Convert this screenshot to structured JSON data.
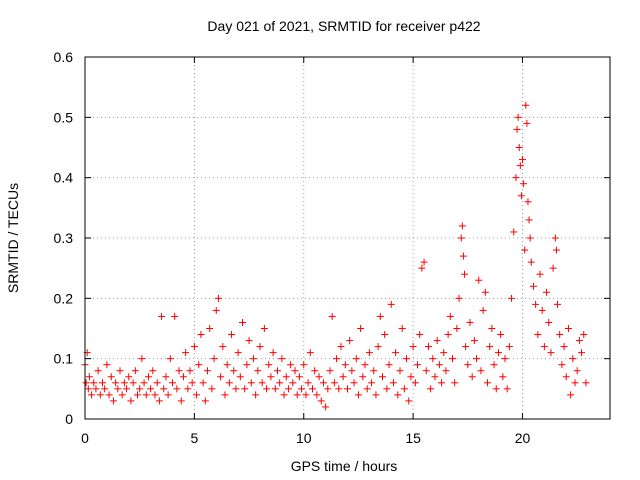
{
  "chart_data": {
    "type": "scatter",
    "title": "Day 021 of 2021, SRMTID for receiver p422",
    "xlabel": "GPS time / hours",
    "ylabel": "SRMTID / TECUs",
    "xlim": [
      0,
      24
    ],
    "ylim": [
      0,
      0.6
    ],
    "xticks": [
      0,
      5,
      10,
      15,
      20
    ],
    "xtick_labels": [
      "0",
      "5",
      "10",
      "15",
      "20"
    ],
    "yticks": [
      0,
      0.1,
      0.2,
      0.3,
      0.4,
      0.5,
      0.6
    ],
    "ytick_labels": [
      "0",
      "0.1",
      "0.2",
      "0.3",
      "0.4",
      "0.5",
      "0.6"
    ],
    "grid": true,
    "marker": "+",
    "series_color": "#ff0000",
    "series": [
      {
        "name": "SRMTID",
        "points": [
          [
            0.0,
            0.09
          ],
          [
            0.05,
            0.06
          ],
          [
            0.1,
            0.11
          ],
          [
            0.15,
            0.05
          ],
          [
            0.2,
            0.07
          ],
          [
            0.3,
            0.04
          ],
          [
            0.4,
            0.06
          ],
          [
            0.5,
            0.05
          ],
          [
            0.6,
            0.08
          ],
          [
            0.7,
            0.04
          ],
          [
            0.8,
            0.06
          ],
          [
            0.9,
            0.05
          ],
          [
            1.0,
            0.09
          ],
          [
            1.1,
            0.04
          ],
          [
            1.2,
            0.07
          ],
          [
            1.3,
            0.03
          ],
          [
            1.4,
            0.06
          ],
          [
            1.5,
            0.05
          ],
          [
            1.6,
            0.08
          ],
          [
            1.7,
            0.04
          ],
          [
            1.8,
            0.06
          ],
          [
            1.9,
            0.05
          ],
          [
            2.0,
            0.07
          ],
          [
            2.1,
            0.03
          ],
          [
            2.2,
            0.06
          ],
          [
            2.3,
            0.08
          ],
          [
            2.4,
            0.04
          ],
          [
            2.5,
            0.05
          ],
          [
            2.6,
            0.1
          ],
          [
            2.7,
            0.06
          ],
          [
            2.8,
            0.04
          ],
          [
            2.9,
            0.07
          ],
          [
            3.0,
            0.05
          ],
          [
            3.1,
            0.08
          ],
          [
            3.2,
            0.04
          ],
          [
            3.3,
            0.06
          ],
          [
            3.4,
            0.03
          ],
          [
            3.5,
            0.17
          ],
          [
            3.6,
            0.05
          ],
          [
            3.7,
            0.07
          ],
          [
            3.8,
            0.04
          ],
          [
            3.9,
            0.1
          ],
          [
            4.0,
            0.06
          ],
          [
            4.1,
            0.17
          ],
          [
            4.2,
            0.05
          ],
          [
            4.3,
            0.08
          ],
          [
            4.4,
            0.03
          ],
          [
            4.5,
            0.07
          ],
          [
            4.6,
            0.11
          ],
          [
            4.7,
            0.05
          ],
          [
            4.8,
            0.08
          ],
          [
            4.9,
            0.06
          ],
          [
            5.0,
            0.12
          ],
          [
            5.1,
            0.04
          ],
          [
            5.2,
            0.09
          ],
          [
            5.3,
            0.14
          ],
          [
            5.4,
            0.06
          ],
          [
            5.5,
            0.03
          ],
          [
            5.6,
            0.08
          ],
          [
            5.7,
            0.15
          ],
          [
            5.8,
            0.05
          ],
          [
            5.9,
            0.1
          ],
          [
            6.0,
            0.18
          ],
          [
            6.1,
            0.2
          ],
          [
            6.2,
            0.07
          ],
          [
            6.3,
            0.12
          ],
          [
            6.4,
            0.04
          ],
          [
            6.5,
            0.09
          ],
          [
            6.6,
            0.06
          ],
          [
            6.7,
            0.14
          ],
          [
            6.8,
            0.08
          ],
          [
            6.9,
            0.05
          ],
          [
            7.0,
            0.11
          ],
          [
            7.1,
            0.07
          ],
          [
            7.2,
            0.16
          ],
          [
            7.3,
            0.05
          ],
          [
            7.4,
            0.09
          ],
          [
            7.5,
            0.13
          ],
          [
            7.6,
            0.06
          ],
          [
            7.7,
            0.1
          ],
          [
            7.8,
            0.04
          ],
          [
            7.9,
            0.08
          ],
          [
            8.0,
            0.12
          ],
          [
            8.1,
            0.06
          ],
          [
            8.2,
            0.15
          ],
          [
            8.3,
            0.05
          ],
          [
            8.4,
            0.09
          ],
          [
            8.5,
            0.07
          ],
          [
            8.6,
            0.11
          ],
          [
            8.7,
            0.05
          ],
          [
            8.8,
            0.08
          ],
          [
            8.9,
            0.06
          ],
          [
            9.0,
            0.1
          ],
          [
            9.1,
            0.04
          ],
          [
            9.2,
            0.07
          ],
          [
            9.3,
            0.05
          ],
          [
            9.4,
            0.09
          ],
          [
            9.5,
            0.06
          ],
          [
            9.6,
            0.08
          ],
          [
            9.7,
            0.04
          ],
          [
            9.8,
            0.07
          ],
          [
            9.9,
            0.05
          ],
          [
            10.0,
            0.09
          ],
          [
            10.1,
            0.04
          ],
          [
            10.2,
            0.06
          ],
          [
            10.3,
            0.11
          ],
          [
            10.4,
            0.05
          ],
          [
            10.5,
            0.08
          ],
          [
            10.6,
            0.04
          ],
          [
            10.7,
            0.07
          ],
          [
            10.8,
            0.03
          ],
          [
            10.9,
            0.06
          ],
          [
            11.0,
            0.02
          ],
          [
            11.1,
            0.05
          ],
          [
            11.2,
            0.08
          ],
          [
            11.3,
            0.17
          ],
          [
            11.4,
            0.06
          ],
          [
            11.5,
            0.1
          ],
          [
            11.6,
            0.05
          ],
          [
            11.7,
            0.12
          ],
          [
            11.8,
            0.07
          ],
          [
            11.9,
            0.09
          ],
          [
            12.0,
            0.05
          ],
          [
            12.1,
            0.13
          ],
          [
            12.2,
            0.08
          ],
          [
            12.3,
            0.06
          ],
          [
            12.4,
            0.1
          ],
          [
            12.5,
            0.04
          ],
          [
            12.6,
            0.15
          ],
          [
            12.7,
            0.07
          ],
          [
            12.8,
            0.09
          ],
          [
            12.9,
            0.05
          ],
          [
            13.0,
            0.11
          ],
          [
            13.1,
            0.06
          ],
          [
            13.2,
            0.08
          ],
          [
            13.3,
            0.04
          ],
          [
            13.4,
            0.12
          ],
          [
            13.5,
            0.17
          ],
          [
            13.6,
            0.07
          ],
          [
            13.7,
            0.14
          ],
          [
            13.8,
            0.05
          ],
          [
            13.9,
            0.09
          ],
          [
            14.0,
            0.19
          ],
          [
            14.1,
            0.06
          ],
          [
            14.2,
            0.11
          ],
          [
            14.3,
            0.04
          ],
          [
            14.4,
            0.08
          ],
          [
            14.5,
            0.15
          ],
          [
            14.6,
            0.05
          ],
          [
            14.7,
            0.1
          ],
          [
            14.8,
            0.03
          ],
          [
            14.9,
            0.07
          ],
          [
            15.0,
            0.12
          ],
          [
            15.1,
            0.06
          ],
          [
            15.2,
            0.09
          ],
          [
            15.3,
            0.14
          ],
          [
            15.4,
            0.25
          ],
          [
            15.5,
            0.26
          ],
          [
            15.6,
            0.08
          ],
          [
            15.7,
            0.12
          ],
          [
            15.8,
            0.05
          ],
          [
            15.9,
            0.1
          ],
          [
            16.0,
            0.07
          ],
          [
            16.1,
            0.13
          ],
          [
            16.2,
            0.09
          ],
          [
            16.3,
            0.06
          ],
          [
            16.4,
            0.11
          ],
          [
            16.5,
            0.08
          ],
          [
            16.6,
            0.14
          ],
          [
            16.7,
            0.17
          ],
          [
            16.8,
            0.1
          ],
          [
            16.9,
            0.06
          ],
          [
            17.0,
            0.15
          ],
          [
            17.1,
            0.2
          ],
          [
            17.2,
            0.3
          ],
          [
            17.25,
            0.32
          ],
          [
            17.3,
            0.27
          ],
          [
            17.35,
            0.24
          ],
          [
            17.4,
            0.12
          ],
          [
            17.5,
            0.09
          ],
          [
            17.6,
            0.16
          ],
          [
            17.7,
            0.07
          ],
          [
            17.8,
            0.13
          ],
          [
            17.9,
            0.1
          ],
          [
            18.0,
            0.23
          ],
          [
            18.1,
            0.08
          ],
          [
            18.2,
            0.18
          ],
          [
            18.3,
            0.21
          ],
          [
            18.4,
            0.06
          ],
          [
            18.5,
            0.12
          ],
          [
            18.6,
            0.15
          ],
          [
            18.7,
            0.09
          ],
          [
            18.8,
            0.05
          ],
          [
            18.9,
            0.11
          ],
          [
            19.0,
            0.14
          ],
          [
            19.1,
            0.07
          ],
          [
            19.2,
            0.1
          ],
          [
            19.3,
            0.05
          ],
          [
            19.4,
            0.12
          ],
          [
            19.5,
            0.2
          ],
          [
            19.6,
            0.31
          ],
          [
            19.7,
            0.4
          ],
          [
            19.75,
            0.48
          ],
          [
            19.8,
            0.5
          ],
          [
            19.85,
            0.45
          ],
          [
            19.9,
            0.42
          ],
          [
            19.95,
            0.37
          ],
          [
            20.0,
            0.43
          ],
          [
            20.05,
            0.39
          ],
          [
            20.1,
            0.28
          ],
          [
            20.15,
            0.52
          ],
          [
            20.2,
            0.49
          ],
          [
            20.25,
            0.36
          ],
          [
            20.3,
            0.33
          ],
          [
            20.35,
            0.3
          ],
          [
            20.4,
            0.26
          ],
          [
            20.5,
            0.22
          ],
          [
            20.6,
            0.19
          ],
          [
            20.7,
            0.14
          ],
          [
            20.8,
            0.24
          ],
          [
            20.9,
            0.18
          ],
          [
            21.0,
            0.12
          ],
          [
            21.1,
            0.21
          ],
          [
            21.2,
            0.16
          ],
          [
            21.3,
            0.11
          ],
          [
            21.4,
            0.25
          ],
          [
            21.5,
            0.3
          ],
          [
            21.55,
            0.28
          ],
          [
            21.6,
            0.19
          ],
          [
            21.7,
            0.14
          ],
          [
            21.8,
            0.09
          ],
          [
            21.9,
            0.12
          ],
          [
            22.0,
            0.07
          ],
          [
            22.1,
            0.15
          ],
          [
            22.2,
            0.04
          ],
          [
            22.3,
            0.1
          ],
          [
            22.4,
            0.06
          ],
          [
            22.5,
            0.08
          ],
          [
            22.6,
            0.13
          ],
          [
            22.7,
            0.11
          ],
          [
            22.8,
            0.14
          ],
          [
            22.9,
            0.06
          ]
        ]
      }
    ]
  }
}
